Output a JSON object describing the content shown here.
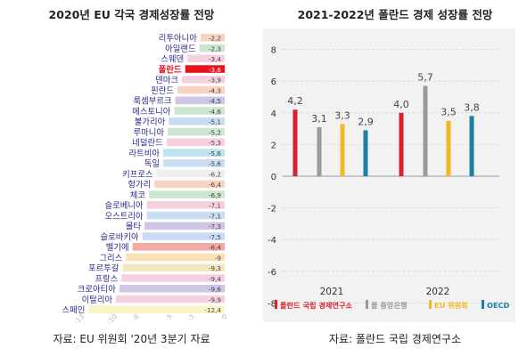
{
  "left": {
    "title": "2020년 EU 각국 경제성장률 전망",
    "source": "자료: EU 위원회 '20년 3분기 자료"
  },
  "right": {
    "title": "2021-2022년 폴란드 경제 성장률 전망",
    "source": "자료: 폴란드 국립 경제연구소"
  },
  "colors": {
    "poland_bar": "#e8141b",
    "poland_label": "#e8141b",
    "country_label": "#2a2a8a",
    "grey_series": "#9a9a9a",
    "yellow_series": "#f2b824",
    "blue_series": "#1b7fa6",
    "red_series": "#d9212c",
    "right_background": "#f2f2f2"
  },
  "chart_data": [
    {
      "type": "bar",
      "orientation": "horizontal",
      "title": "2020년 EU 각국 경제성장률 전망",
      "categories": [
        "리투아니아",
        "아일랜드",
        "스웨덴",
        "폴란드",
        "덴마크",
        "핀란드",
        "룩셈부르크",
        "에스토니아",
        "불가리아",
        "루마니아",
        "네덜란드",
        "라트비아",
        "독일",
        "키프로스",
        "헝가리",
        "체코",
        "슬로베니아",
        "오스트리아",
        "몰타",
        "슬로바키아",
        "벨기에",
        "그리스",
        "포르투갈",
        "프랑스",
        "크로아티아",
        "이탈리아",
        "스페인"
      ],
      "values": [
        -2.2,
        -2.3,
        -3.4,
        -3.6,
        -3.9,
        -4.3,
        -4.5,
        -4.6,
        -5.1,
        -5.2,
        -5.3,
        -5.6,
        -5.6,
        -6.2,
        -6.4,
        -6.9,
        -7.1,
        -7.1,
        -7.3,
        -7.5,
        -8.4,
        -9,
        -9.3,
        -9.4,
        -9.6,
        -9.9,
        -12.4
      ],
      "value_labels": [
        "-2,2",
        "-2,3",
        "-3,4",
        "-3,6",
        "-3,9",
        "-4,3",
        "-4,5",
        "-4,6",
        "-5,1",
        "-5,2",
        "-5,3",
        "-5,6",
        "-5,6",
        "-6,2",
        "-6,4",
        "-6,9",
        "-7,1",
        "-7,1",
        "-7,3",
        "-7,5",
        "-8,4",
        "-9",
        "-9,3",
        "-9,4",
        "-9,6",
        "-9,9",
        "-12,4"
      ],
      "bar_colors": [
        "#f9d3c2",
        "#cce6cf",
        "#f6d0df",
        "#e8141b",
        "#f6d0df",
        "#f9d3c2",
        "#cfc6e6",
        "#cce6cf",
        "#c9dcf0",
        "#cce6cf",
        "#f6d0df",
        "#bfe3ee",
        "#c9dcf0",
        "#eeeeee",
        "#f9d3c2",
        "#cce6cf",
        "#f6d0df",
        "#c9dcf0",
        "#cfc6e6",
        "#c9dcf0",
        "#f4a9a4",
        "#fae0b6",
        "#f3e7bd",
        "#f6d0df",
        "#cfc6e6",
        "#f6d0df",
        "#fbf5c5"
      ],
      "highlight": "폴란드",
      "x_ticks": [
        "-13",
        "-10",
        "-8",
        "-5",
        "-3",
        "0"
      ],
      "xlim": [
        -13,
        0
      ]
    },
    {
      "type": "bar",
      "title": "2021-2022년 폴란드 경제 성장률 전망",
      "categories": [
        "2021",
        "2022"
      ],
      "series": [
        {
          "name": "폴란드 국립 경제연구소",
          "values": [
            4.2,
            4.0
          ],
          "labels": [
            "4,2",
            "4,0"
          ],
          "color": "#d9212c"
        },
        {
          "name": "폴 중앙은행",
          "values": [
            3.1,
            5.7
          ],
          "labels": [
            "3,1",
            "5,7"
          ],
          "color": "#9a9a9a"
        },
        {
          "name": "EU 위원회",
          "values": [
            3.3,
            3.5
          ],
          "labels": [
            "3,3",
            "3,5"
          ],
          "color": "#f2b824"
        },
        {
          "name": "OECD",
          "values": [
            2.9,
            3.8
          ],
          "labels": [
            "2,9",
            "3,8"
          ],
          "color": "#1b7fa6"
        }
      ],
      "y_ticks": [
        "8",
        "6",
        "4",
        "2",
        "0",
        "-2",
        "-4",
        "-6",
        "-8"
      ],
      "ylim": [
        -8,
        8
      ],
      "legend_position": "bottom",
      "grid": true
    }
  ]
}
